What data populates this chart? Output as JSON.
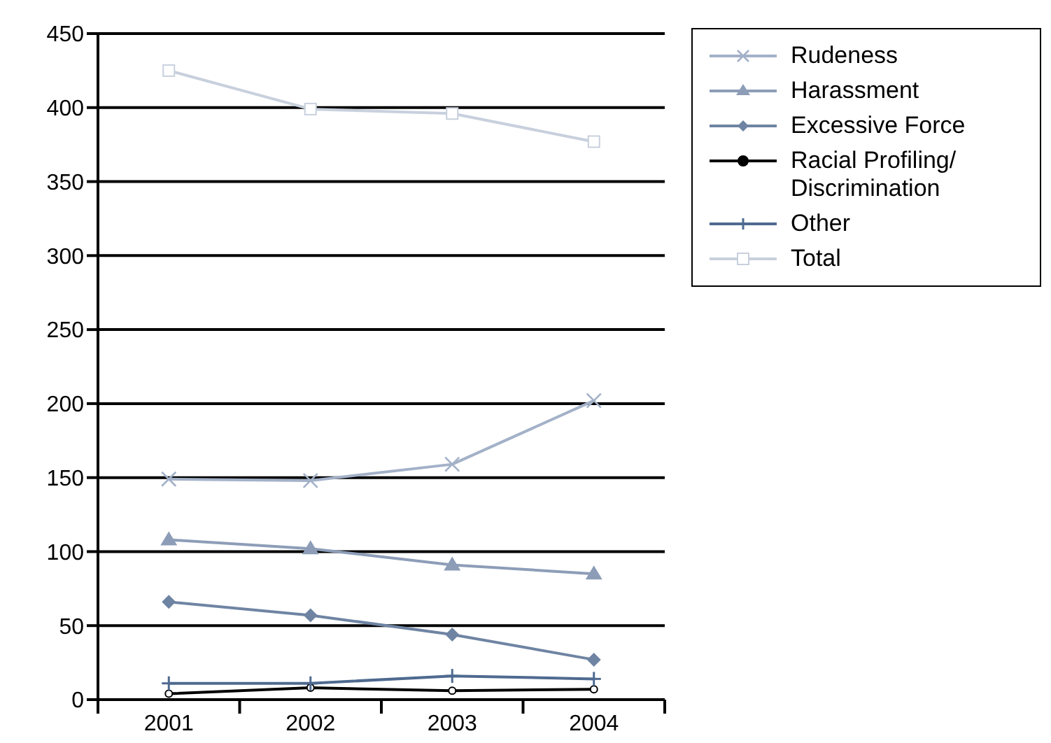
{
  "chart_data": {
    "type": "line",
    "categories": [
      "2001",
      "2002",
      "2003",
      "2004"
    ],
    "series": [
      {
        "name": "Rudeness",
        "color": "#a3b1c8",
        "marker": "cross",
        "values": [
          149,
          148,
          159,
          202
        ]
      },
      {
        "name": "Harassment",
        "color": "#8d9db8",
        "marker": "triangle",
        "values": [
          108,
          102,
          91,
          85
        ]
      },
      {
        "name": "Excessive Force",
        "color": "#6f84a3",
        "marker": "diamond",
        "values": [
          66,
          57,
          44,
          27
        ]
      },
      {
        "name": "Racial Profiling/ Discrimination",
        "color": "#000000",
        "marker": "circle",
        "values": [
          4,
          8,
          6,
          7
        ]
      },
      {
        "name": "Other",
        "color": "#4f6a90",
        "marker": "plus",
        "values": [
          11,
          11,
          16,
          14
        ]
      },
      {
        "name": "Total",
        "color": "#c8d0dd",
        "marker": "square",
        "values": [
          425,
          399,
          396,
          377
        ]
      }
    ],
    "ylim": [
      0,
      450
    ],
    "yticks": [
      0,
      50,
      100,
      150,
      200,
      250,
      300,
      350,
      400,
      450
    ],
    "grid": "y",
    "legend": "top right",
    "line_style": "solid"
  }
}
